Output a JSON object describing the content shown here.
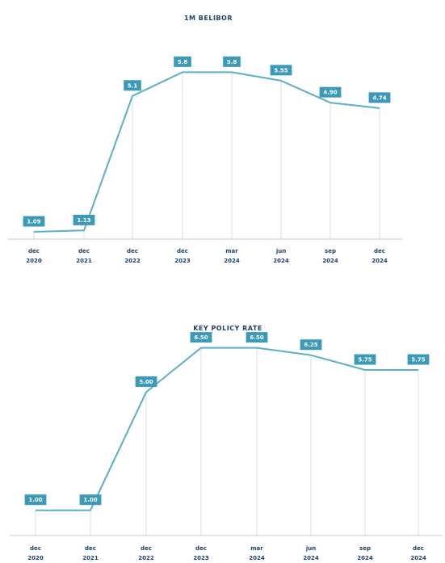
{
  "chart_data": [
    {
      "type": "line",
      "title": "1M BELIBOR",
      "categories": [
        "dec 2020",
        "dec 2021",
        "dec 2022",
        "dec 2023",
        "mar 2024",
        "jun 2024",
        "sep 2024",
        "dec 2024"
      ],
      "series": [
        {
          "values": [
            1.09,
            1.13,
            5.1,
            5.8,
            5.8,
            5.55,
            4.9,
            4.74
          ],
          "labels": [
            "1.09",
            "1.13",
            "5.1",
            "5.8",
            "5.8",
            "5.55",
            "4.90",
            "4.74"
          ]
        }
      ],
      "xlabel": "",
      "ylabel": "",
      "ylim": [
        0.9,
        6.5
      ],
      "grid": "vertical",
      "colors": {
        "line": "#5aafc7",
        "label_bg": "#3c9ab8",
        "grid": "#dcdcdc",
        "axis": "#c8c8c8",
        "text": "#1f3f66"
      }
    },
    {
      "type": "line",
      "title": "KEY POLICY RATE",
      "categories": [
        "dec 2020",
        "dec 2021",
        "dec 2022",
        "dec 2023",
        "mar 2024",
        "jun 2024",
        "sep 2024",
        "dec 2024"
      ],
      "series": [
        {
          "values": [
            1.0,
            1.0,
            5.0,
            6.5,
            6.5,
            6.25,
            5.75,
            5.75
          ],
          "labels": [
            "1.00",
            "1.00",
            "5.00",
            "6.50",
            "6.50",
            "6.25",
            "5.75",
            "5.75"
          ]
        }
      ],
      "xlabel": "",
      "ylabel": "",
      "ylim": [
        0.5,
        7.2
      ],
      "grid": "vertical",
      "colors": {
        "line": "#5aafc7",
        "label_bg": "#3c9ab8",
        "grid": "#dcdcdc",
        "axis": "#c8c8c8",
        "text": "#1f3f66"
      }
    }
  ]
}
